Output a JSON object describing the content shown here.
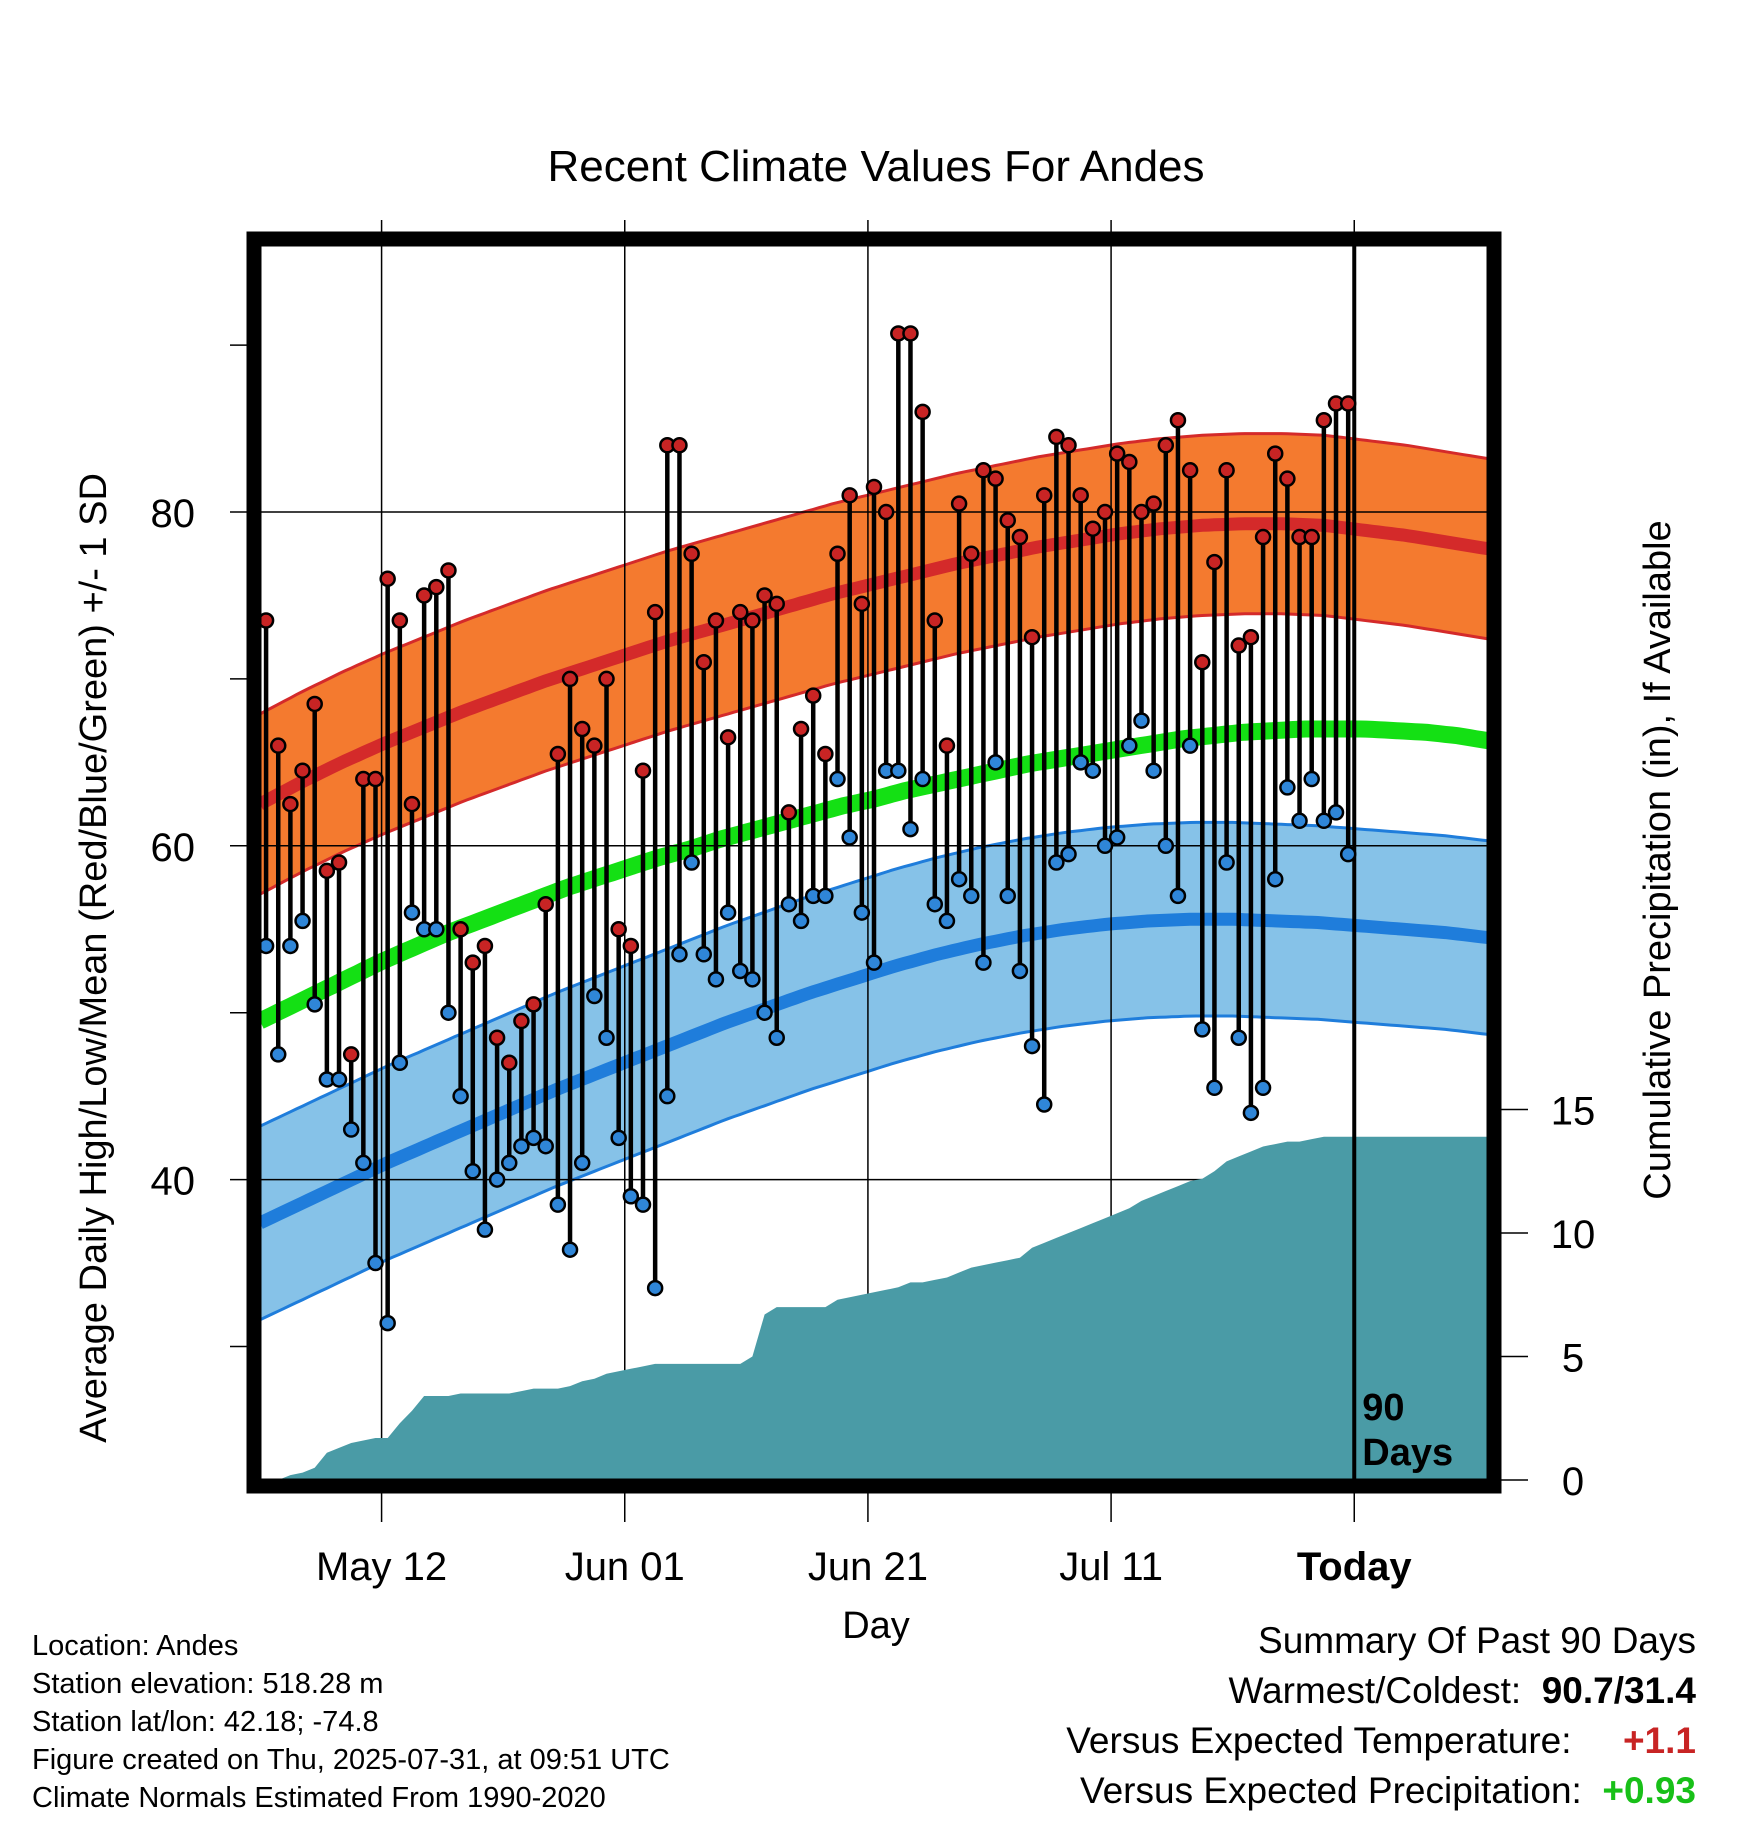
{
  "chart_data": {
    "type": "line",
    "title": "Recent Climate Values For Andes",
    "xlabel": "Day",
    "ylabel_left": "Average Daily High/Low/Mean (Red/Blue/Green) +/- 1 SD",
    "ylabel_right": "Cumulative Precipitation (in), If Available",
    "x_ticks": [
      "May 12",
      "Jun 01",
      "Jun 21",
      "Jul 11",
      "Today"
    ],
    "y_left_ticks": [
      40,
      60,
      80
    ],
    "y_right_ticks": [
      0,
      5,
      10,
      15
    ],
    "y_left_range": [
      22,
      96
    ],
    "y_right_range": [
      0,
      50
    ],
    "period_label": [
      "90",
      "Days"
    ],
    "grid": true,
    "series": [
      {
        "name": "High",
        "color": "#d42a2a",
        "values": [
          73.5,
          66,
          62.5,
          64.5,
          68.5,
          58.5,
          59,
          47.5,
          64,
          64,
          76,
          73.5,
          62.5,
          75,
          75.5,
          76.5,
          55,
          53,
          54,
          48.5,
          47,
          49.5,
          50.5,
          56.5,
          65.5,
          70,
          67,
          66,
          70,
          55,
          54,
          64.5,
          74,
          84,
          84,
          77.5,
          71,
          73.5,
          66.5,
          74,
          73.5,
          75,
          74.5,
          62,
          67,
          69,
          65.5,
          77.5,
          81,
          74.5,
          81.5,
          80,
          90.7,
          90.7,
          86,
          73.5,
          66,
          80.5,
          77.5,
          82.5,
          82,
          79.5,
          78.5,
          72.5,
          81,
          84.5,
          84,
          81,
          79,
          80,
          83.5,
          83,
          80,
          80.5,
          84,
          85.5,
          82.5,
          71,
          77,
          82.5,
          72,
          72.5,
          78.5,
          83.5,
          82,
          78.5,
          78.5,
          85.5,
          86.5,
          86.5
        ]
      },
      {
        "name": "Low",
        "color": "#1f7ddb",
        "values": [
          54,
          47.5,
          54,
          55.5,
          50.5,
          46,
          46,
          43,
          41,
          35,
          31.4,
          47,
          56,
          55,
          55,
          50,
          45,
          40.5,
          37,
          40,
          41,
          42,
          42.5,
          42,
          38.5,
          35.8,
          41,
          51,
          48.5,
          42.5,
          39,
          38.5,
          33.5,
          45,
          53.5,
          59,
          53.5,
          52,
          56,
          52.5,
          52,
          50,
          48.5,
          56.5,
          55.5,
          57,
          57,
          64,
          60.5,
          56,
          53,
          64.5,
          64.5,
          61,
          64,
          56.5,
          55.5,
          58,
          57,
          53,
          65,
          57,
          52.5,
          48,
          44.5,
          59,
          59.5,
          65,
          64.5,
          60,
          60.5,
          66,
          67.5,
          64.5,
          60,
          57,
          66,
          49,
          45.5,
          59,
          48.5,
          44,
          45.5,
          58,
          63.5,
          61.5,
          64,
          61.5,
          62,
          59.5
        ]
      },
      {
        "name": "Mean Normal",
        "color": "#14e014",
        "values": [
          49.5,
          50.4,
          51.3,
          52.2,
          53.1,
          53.9,
          54.7,
          55.4,
          56.1,
          56.8,
          57.5,
          58.1,
          58.7,
          59.3,
          59.8,
          60.4,
          60.9,
          61.4,
          61.9,
          62.4,
          62.8,
          63.3,
          63.7,
          64.1,
          64.5,
          64.9,
          65.2,
          65.5,
          65.8,
          66.1,
          66.4,
          66.6,
          66.8,
          66.9,
          67.0,
          67.0,
          67.0,
          66.9,
          66.8,
          66.6,
          66.3
        ]
      },
      {
        "name": "High Normal",
        "color": "#d42a2a",
        "values": [
          62.5,
          63.8,
          65,
          66.1,
          67.1,
          68.1,
          69,
          69.9,
          70.7,
          71.5,
          72.3,
          73,
          73.7,
          74.4,
          75.1,
          75.7,
          76.3,
          76.9,
          77.4,
          77.9,
          78.3,
          78.7,
          79,
          79.2,
          79.3,
          79.3,
          79.2,
          78.9,
          78.6,
          78.2,
          77.8
        ]
      },
      {
        "name": "Low Normal",
        "color": "#1f7ddb",
        "values": [
          37.4,
          38.6,
          39.8,
          41,
          42.1,
          43.2,
          44.3,
          45.4,
          46.4,
          47.4,
          48.4,
          49.4,
          50.3,
          51.2,
          52,
          52.8,
          53.5,
          54.1,
          54.6,
          55,
          55.3,
          55.5,
          55.6,
          55.6,
          55.5,
          55.4,
          55.2,
          55,
          54.8,
          54.5
        ]
      },
      {
        "name": "Cumulative Precipitation",
        "color": "#4a9ba6",
        "values": [
          0,
          0.2,
          0.3,
          0.5,
          1.1,
          1.3,
          1.5,
          1.6,
          1.7,
          1.7,
          2.3,
          2.8,
          3.4,
          3.4,
          3.4,
          3.5,
          3.5,
          3.5,
          3.5,
          3.5,
          3.6,
          3.7,
          3.7,
          3.7,
          3.8,
          4.0,
          4.1,
          4.3,
          4.4,
          4.5,
          4.6,
          4.7,
          4.7,
          4.7,
          4.7,
          4.7,
          4.7,
          4.7,
          4.7,
          5.0,
          6.7,
          7.0,
          7.0,
          7.0,
          7.0,
          7.0,
          7.3,
          7.4,
          7.5,
          7.6,
          7.7,
          7.8,
          8.0,
          8.0,
          8.1,
          8.2,
          8.4,
          8.6,
          8.7,
          8.8,
          8.9,
          9.0,
          9.4,
          9.6,
          9.8,
          10.0,
          10.2,
          10.4,
          10.6,
          10.8,
          11.0,
          11.3,
          11.5,
          11.7,
          11.9,
          12.1,
          12.2,
          12.5,
          12.9,
          13.1,
          13.3,
          13.5,
          13.6,
          13.7,
          13.7,
          13.8,
          13.9,
          13.9,
          13.9,
          13.9
        ]
      }
    ],
    "colors": {
      "high_band": "#f47a2f",
      "low_band": "#86c2e8",
      "precip": "#4a9ba6",
      "high_point": "#c82424",
      "low_point": "#2f86d8"
    }
  },
  "footer": {
    "location": "Location: Andes",
    "elevation": "Station elevation: 518.28 m",
    "latlon": "Station lat/lon: 42.18; -74.8",
    "created": "Figure created on Thu, 2025-07-31, at 09:51 UTC",
    "normals": "Climate Normals Estimated From 1990-2020"
  },
  "summary": {
    "heading": "Summary Of Past 90 Days",
    "warm_cold_label": "Warmest/Coldest:",
    "warm_cold_value": "90.7/31.4",
    "temp_label": "Versus Expected Temperature:",
    "temp_value": "+1.1",
    "temp_color": "#c82424",
    "precip_label": "Versus Expected Precipitation:",
    "precip_value": "+0.93",
    "precip_color": "#18c018"
  }
}
